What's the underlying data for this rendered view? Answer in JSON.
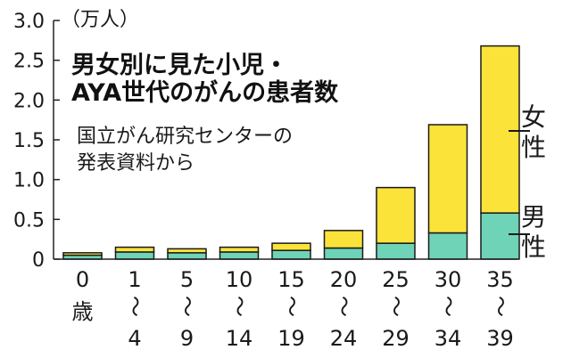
{
  "chart_data": {
    "type": "bar",
    "stacked": true,
    "title": [
      "男女別に見た小児・",
      "AYA世代のがんの患者数"
    ],
    "source": [
      "国立がん研究センターの",
      "発表資料から"
    ],
    "unit_label": "（万人）",
    "ylim": [
      0,
      3.0
    ],
    "y_ticks": [
      "0",
      "0.5",
      "1.0",
      "1.5",
      "2.0",
      "2.5",
      "3.0"
    ],
    "categories": [
      {
        "top": "0",
        "bottom": "歳"
      },
      {
        "top": "1",
        "bottom": "4"
      },
      {
        "top": "5",
        "bottom": "9"
      },
      {
        "top": "10",
        "bottom": "14"
      },
      {
        "top": "15",
        "bottom": "19"
      },
      {
        "top": "20",
        "bottom": "24"
      },
      {
        "top": "25",
        "bottom": "29"
      },
      {
        "top": "30",
        "bottom": "34"
      },
      {
        "top": "35",
        "bottom": "39"
      }
    ],
    "range_mark": "～",
    "series": [
      {
        "name": "男性",
        "legend_lines": [
          "男",
          "性"
        ],
        "color": "#6fd3b8",
        "values": [
          0.05,
          0.09,
          0.08,
          0.09,
          0.11,
          0.14,
          0.2,
          0.33,
          0.58
        ]
      },
      {
        "name": "女性",
        "legend_lines": [
          "女",
          "性"
        ],
        "color": "#fce33a",
        "values": [
          0.03,
          0.06,
          0.05,
          0.06,
          0.09,
          0.22,
          0.7,
          1.36,
          2.1
        ]
      }
    ],
    "grid": false,
    "legend_placement": "right"
  }
}
